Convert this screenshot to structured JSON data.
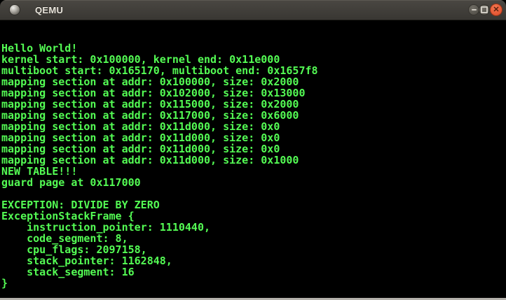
{
  "window": {
    "title": "QEMU",
    "titlebar": {
      "icon": "qemu-app-icon",
      "buttons": [
        {
          "name": "minimize",
          "glyph": "−"
        },
        {
          "name": "maximize",
          "glyph": "□"
        },
        {
          "name": "close",
          "glyph": "✕"
        }
      ]
    }
  },
  "colors": {
    "terminal_bg": "#000000",
    "terminal_fg": "#54fc54",
    "titlebar_top": "#4a4742",
    "titlebar_bottom": "#393733",
    "close_button": "#e55936",
    "screen_edge": "#b4b1ab"
  },
  "terminal": {
    "lines": [
      "",
      "",
      "Hello World!",
      "kernel start: 0x100000, kernel end: 0x11e000",
      "multiboot start: 0x165170, multiboot end: 0x1657f8",
      "mapping section at addr: 0x100000, size: 0x2000",
      "mapping section at addr: 0x102000, size: 0x13000",
      "mapping section at addr: 0x115000, size: 0x2000",
      "mapping section at addr: 0x117000, size: 0x6000",
      "mapping section at addr: 0x11d000, size: 0x0",
      "mapping section at addr: 0x11d000, size: 0x0",
      "mapping section at addr: 0x11d000, size: 0x0",
      "mapping section at addr: 0x11d000, size: 0x1000",
      "NEW TABLE!!!",
      "guard page at 0x117000",
      "",
      "EXCEPTION: DIVIDE BY ZERO",
      "ExceptionStackFrame {",
      "    instruction_pointer: 1110440,",
      "    code_segment: 8,",
      "    cpu_flags: 2097158,",
      "    stack_pointer: 1162848,",
      "    stack_segment: 16",
      "}"
    ]
  }
}
